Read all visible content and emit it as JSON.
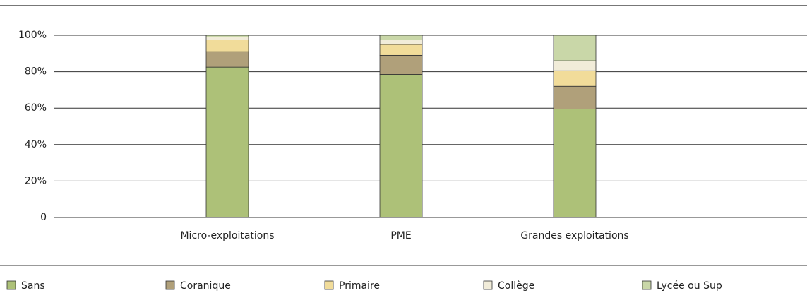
{
  "chart_data": {
    "type": "stacked_bar",
    "categories": [
      "Micro-exploitations",
      "PME",
      "Grandes exploitations"
    ],
    "series": [
      {
        "name": "Sans",
        "color": "#adc178",
        "values": [
          82.5,
          78.5,
          59.5
        ]
      },
      {
        "name": "Coranique",
        "color": "#b0a07a",
        "values": [
          8.5,
          10.5,
          12.5
        ]
      },
      {
        "name": "Primaire",
        "color": "#f1dc9a",
        "values": [
          6.5,
          6,
          8.5
        ]
      },
      {
        "name": "Collège",
        "color": "#f1ecd9",
        "values": [
          1.5,
          2.5,
          5.5
        ]
      },
      {
        "name": "Lycée ou Sup",
        "color": "#c9d7a8",
        "values": [
          1,
          2.5,
          14
        ]
      }
    ],
    "ylim": [
      0,
      100
    ],
    "yticks": [
      0,
      {
        "value": 20,
        "label": "20%"
      },
      {
        "value": 40,
        "label": "40%"
      },
      {
        "value": 60,
        "label": "60%"
      },
      {
        "value": 80,
        "label": "80%"
      },
      {
        "value": 100,
        "label": "100%"
      }
    ],
    "grid": true,
    "legend": "bottom"
  }
}
